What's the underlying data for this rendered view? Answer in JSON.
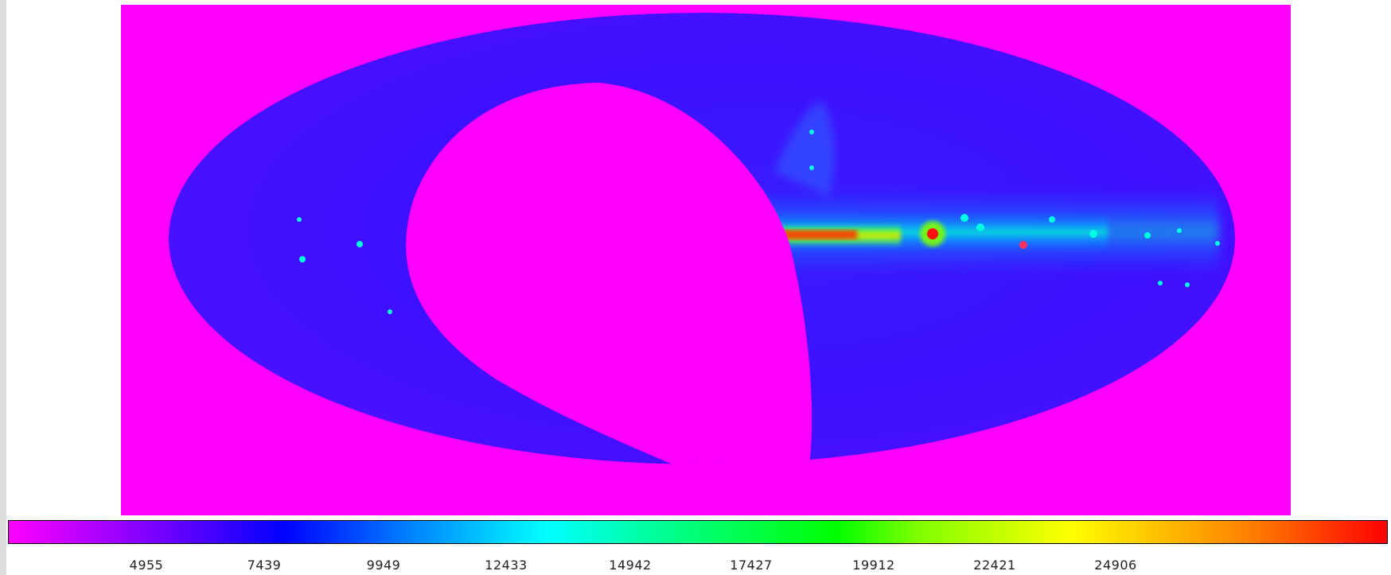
{
  "map": {
    "projection": "mollweide",
    "colormap": [
      "#ff00ff",
      "#8000ff",
      "#0000ff",
      "#0080ff",
      "#00ffff",
      "#00ff80",
      "#00ff00",
      "#80ff00",
      "#ffff00",
      "#ff8000",
      "#ff0000"
    ],
    "mask_color": "#ff00ff",
    "background_color": "#0000ff"
  },
  "colorbar": {
    "ticks": [
      "4955",
      "7439",
      "9949",
      "12433",
      "14942",
      "17427",
      "19912",
      "22421",
      "24906"
    ]
  }
}
